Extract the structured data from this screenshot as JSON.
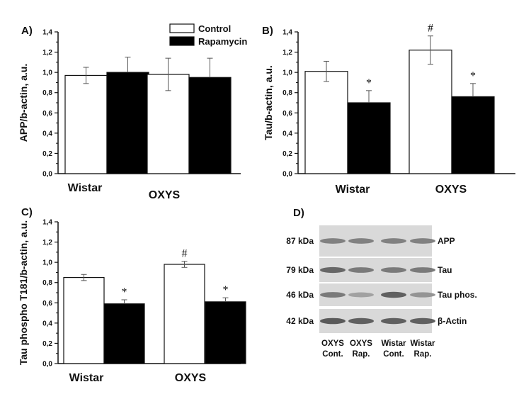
{
  "chart_data": [
    {
      "panel": "A)",
      "type": "bar",
      "categories": [
        "Wistar",
        "OXYS"
      ],
      "series": [
        {
          "name": "Control",
          "values": [
            0.97,
            0.98
          ],
          "errors": [
            0.08,
            0.16
          ],
          "color": "#ffffff"
        },
        {
          "name": "Rapamycin",
          "values": [
            1.0,
            0.95
          ],
          "errors": [
            0.15,
            0.19
          ],
          "color": "#000000"
        }
      ],
      "annotations": [
        [
          "",
          ""
        ],
        [
          "",
          ""
        ]
      ],
      "ylabel": "APP/b-actin, a.u.",
      "ylim": [
        0,
        1.4
      ],
      "yticks": [
        "0,0",
        "0,2",
        "0,4",
        "0,6",
        "0,8",
        "1,0",
        "1,2",
        "1,4"
      ],
      "legend": [
        "Control",
        "Rapamycin"
      ]
    },
    {
      "panel": "B)",
      "type": "bar",
      "categories": [
        "Wistar",
        "OXYS"
      ],
      "series": [
        {
          "name": "Control",
          "values": [
            1.01,
            1.22
          ],
          "errors": [
            0.1,
            0.14
          ],
          "color": "#ffffff"
        },
        {
          "name": "Rapamycin",
          "values": [
            0.7,
            0.76
          ],
          "errors": [
            0.12,
            0.13
          ],
          "color": "#000000"
        }
      ],
      "annotations": [
        [
          "",
          "*"
        ],
        [
          "#",
          "*"
        ]
      ],
      "ylabel": "Tau/b-actin, a.u.",
      "ylim": [
        0,
        1.4
      ],
      "yticks": [
        "0,0",
        "0,2",
        "0,4",
        "0,6",
        "0,8",
        "1,0",
        "1,2",
        "1,4"
      ]
    },
    {
      "panel": "C)",
      "type": "bar",
      "categories": [
        "Wistar",
        "OXYS"
      ],
      "series": [
        {
          "name": "Control",
          "values": [
            0.85,
            0.98
          ],
          "errors": [
            0.03,
            0.03
          ],
          "color": "#ffffff"
        },
        {
          "name": "Rapamycin",
          "values": [
            0.59,
            0.61
          ],
          "errors": [
            0.04,
            0.04
          ],
          "color": "#000000"
        }
      ],
      "annotations": [
        [
          "",
          "*"
        ],
        [
          "#",
          "*"
        ]
      ],
      "ylabel": "Tau phospho T181/b-actin, a.u.",
      "ylim": [
        0,
        1.4
      ],
      "yticks": [
        "0,0",
        "0,2",
        "0,4",
        "0,6",
        "0,8",
        "1,0",
        "1,2",
        "1,4"
      ]
    }
  ],
  "blot": {
    "panel": "D)",
    "rows": [
      {
        "kda": "87 kDa",
        "name": "APP",
        "intensities": [
          0.55,
          0.55,
          0.55,
          0.55
        ]
      },
      {
        "kda": "79 kDa",
        "name": "Tau",
        "intensities": [
          0.75,
          0.6,
          0.6,
          0.6
        ]
      },
      {
        "kda": "46 kDa",
        "name": "Tau phos.",
        "intensities": [
          0.6,
          0.3,
          0.8,
          0.4
        ]
      },
      {
        "kda": "42 kDa",
        "name": "β-Actin",
        "intensities": [
          0.85,
          0.8,
          0.8,
          0.8
        ]
      }
    ],
    "lanes": [
      {
        "line1": "OXYS",
        "line2": "Cont."
      },
      {
        "line1": "OXYS",
        "line2": "Rap."
      },
      {
        "line1": "Wistar",
        "line2": "Cont."
      },
      {
        "line1": "Wistar",
        "line2": "Rap."
      }
    ]
  }
}
